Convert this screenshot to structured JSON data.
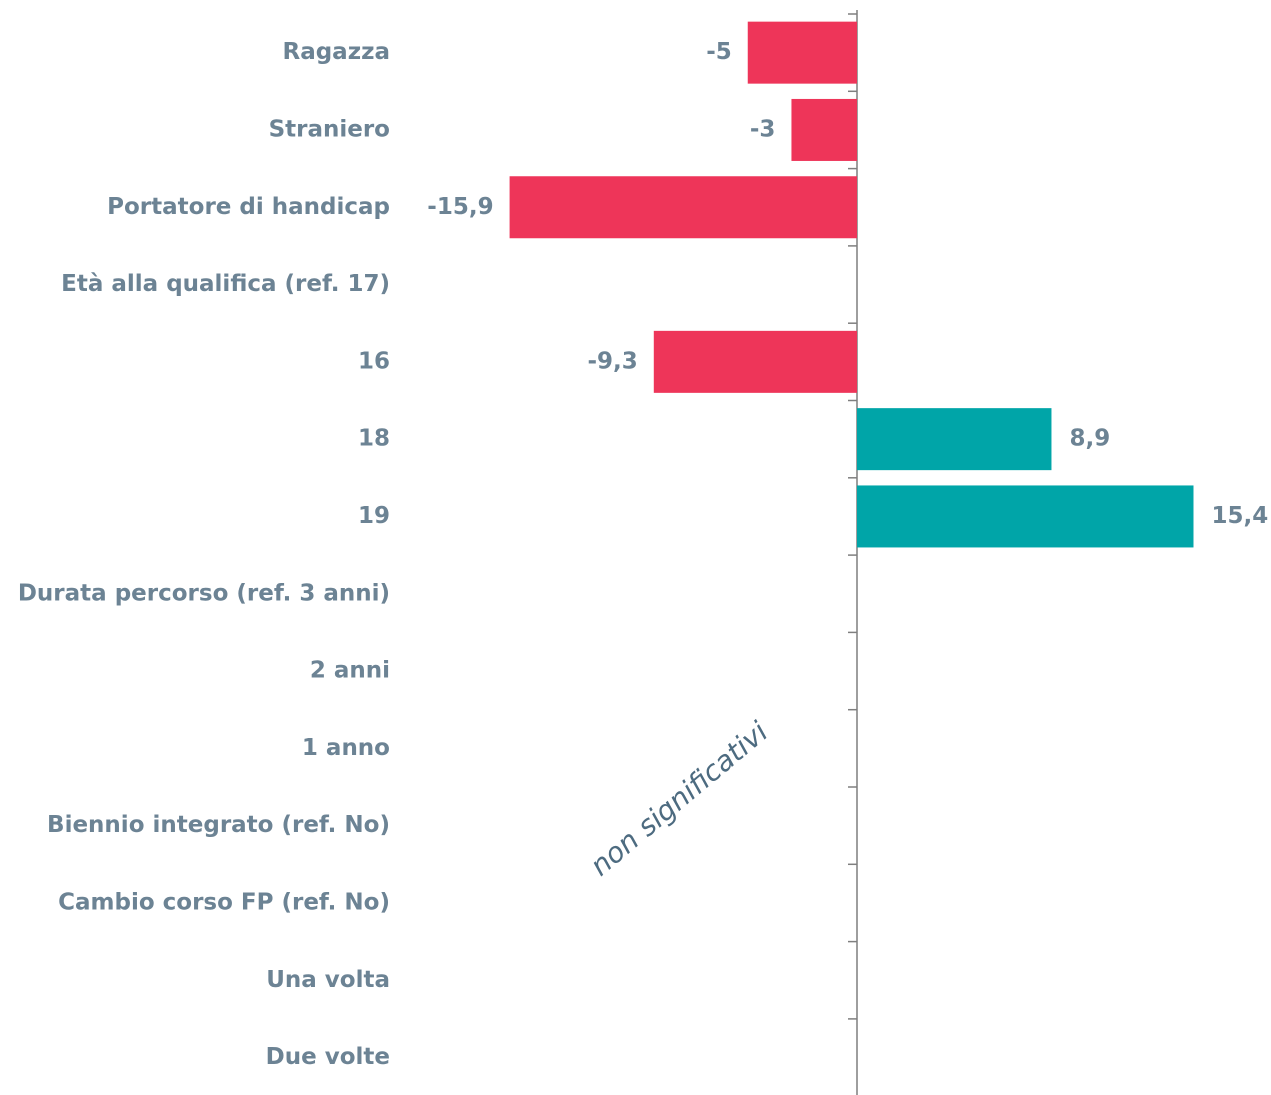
{
  "chart_data": {
    "type": "bar",
    "orientation": "horizontal",
    "categories": [
      "Ragazza",
      "Straniero",
      "Portatore di handicap",
      "Età alla qualifica (ref. 17)",
      "16",
      "18",
      "19",
      "Durata percorso (ref. 3 anni)",
      "2 anni",
      "1 anno",
      "Biennio integrato (ref. No)",
      "Cambio corso FP (ref. No)",
      "Una volta",
      "Due volte"
    ],
    "values": [
      -5,
      -3,
      -15.9,
      null,
      -9.3,
      8.9,
      15.4,
      null,
      null,
      null,
      null,
      null,
      null,
      null
    ],
    "value_labels": [
      "-5",
      "-3",
      "-15,9",
      null,
      "-9,3",
      "8,9",
      "15,4",
      null,
      null,
      null,
      null,
      null,
      null,
      null
    ],
    "color_negative": "#ee3559",
    "color_positive": "#00a5a8",
    "annotation": "non significativi"
  }
}
